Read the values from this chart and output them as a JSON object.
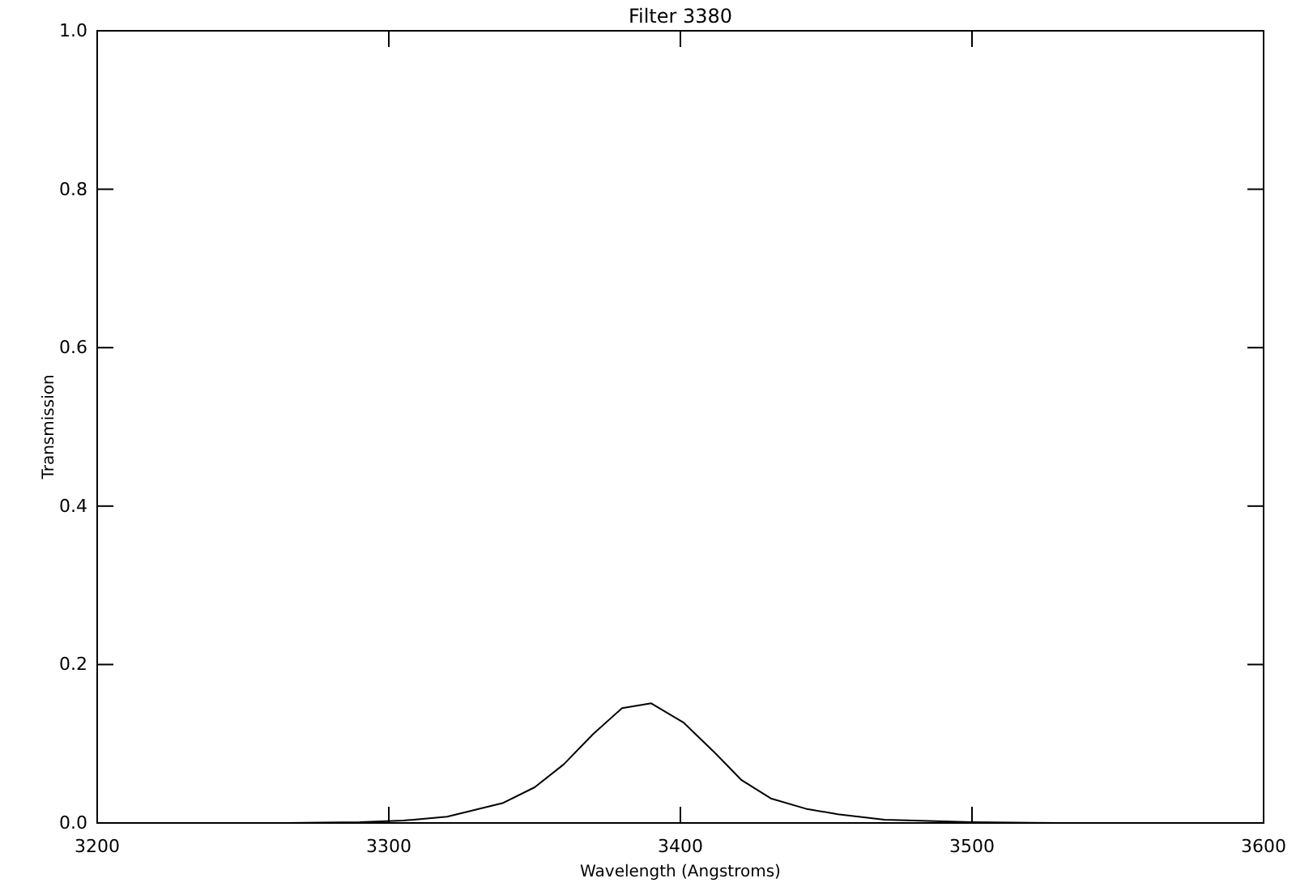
{
  "chart_data": {
    "type": "line",
    "title": "Filter 3380",
    "xlabel": "Wavelength (Angstroms)",
    "ylabel": "Transmission",
    "xlim": [
      3200,
      3600
    ],
    "xticks": [
      3200,
      3300,
      3400,
      3500,
      3600
    ],
    "ylim": [
      0,
      1
    ],
    "yticks": [
      {
        "value": 0,
        "label": "0.0"
      },
      0.2,
      0.4,
      0.6,
      0.8,
      {
        "value": 1,
        "label": "1.0"
      }
    ],
    "marker": "none",
    "line_style": "solid",
    "series": [
      {
        "color": "#000000",
        "x": [
          3265,
          3290,
          3305,
          3320,
          3339,
          3350,
          3360,
          3370,
          3380,
          3390,
          3401,
          3412,
          3421,
          3431,
          3443,
          3454,
          3470,
          3500,
          3530,
          3555
        ],
        "values": [
          0,
          0.001,
          0.003,
          0.008,
          0.025,
          0.045,
          0.074,
          0.112,
          0.145,
          0.151,
          0.127,
          0.088,
          0.054,
          0.031,
          0.018,
          0.011,
          0.004,
          0.001,
          0,
          0
        ]
      }
    ]
  }
}
